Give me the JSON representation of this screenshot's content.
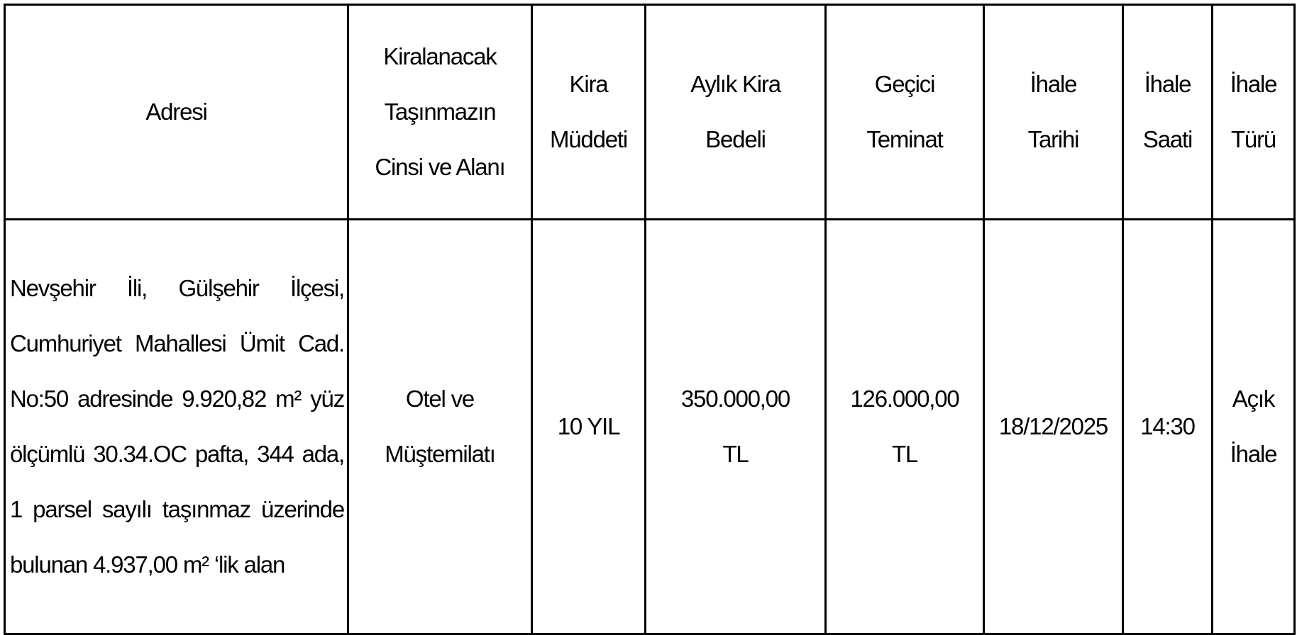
{
  "table": {
    "headers": [
      [
        "Adresi"
      ],
      [
        "Kiralanacak",
        "Taşınmazın",
        "Cinsi ve Alanı"
      ],
      [
        "Kira",
        "Müddeti"
      ],
      [
        "Aylık Kira",
        "Bedeli"
      ],
      [
        "Geçici",
        "Teminat"
      ],
      [
        "İhale",
        "Tarihi"
      ],
      [
        "İhale",
        "Saati"
      ],
      [
        "İhale",
        "Türü"
      ]
    ],
    "row": {
      "address": "Nevşehir İli, Gülşehir İlçesi, Cumhuriyet Mahallesi Ümit Cad. No:50 adresinde 9.920,82 m² yüz ölçümlü 30.34.OC pafta, 344 ada, 1 parsel sayılı taşınmaz üzerinde bulunan 4.937,00 m² ‘lik alan",
      "property_type": [
        "Otel ve",
        "Müştemilatı"
      ],
      "duration": "10 YIL",
      "monthly_rent": [
        "350.000,00",
        "TL"
      ],
      "deposit": [
        "126.000,00",
        "TL"
      ],
      "date": "18/12/2025",
      "time": "14:30",
      "type": [
        "Açık",
        "İhale"
      ]
    }
  }
}
